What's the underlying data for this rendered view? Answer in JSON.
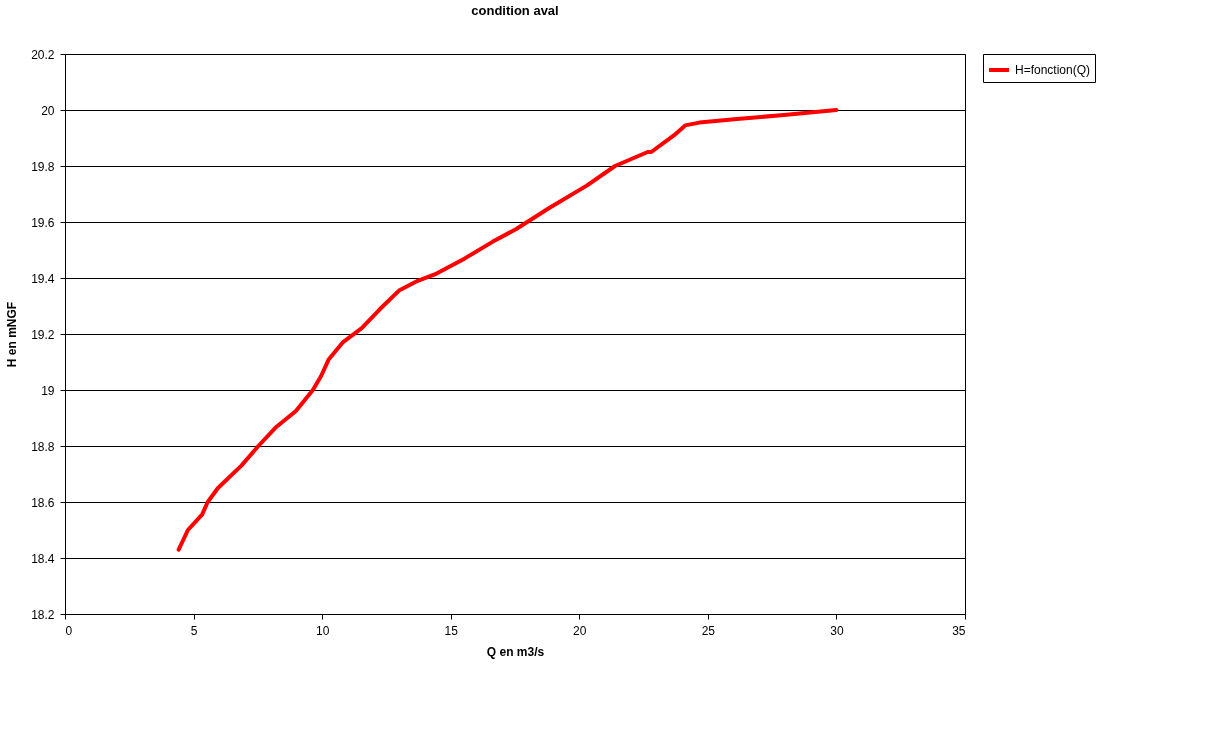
{
  "chart_data": {
    "type": "line",
    "title": "condition aval",
    "xlabel": "Q en m3/s",
    "ylabel": "H en mNGF",
    "x": [
      4.42,
      4.78,
      5.33,
      5.55,
      5.95,
      6.86,
      7.52,
      8.18,
      8.98,
      9.64,
      9.96,
      10.26,
      10.8,
      11.53,
      12.26,
      12.99,
      13.72,
      14.45,
      15.55,
      16.64,
      17.55,
      18.83,
      20.29,
      21.39,
      22.66,
      22.8,
      23.69,
      24.12,
      24.67,
      26.13,
      27.96,
      30.0
    ],
    "series": [
      {
        "name": "H=fonction(Q)",
        "color": "#ff0000",
        "values": [
          18.43,
          18.5,
          18.555,
          18.6,
          18.65,
          18.73,
          18.8,
          18.865,
          18.925,
          19.0,
          19.05,
          19.11,
          19.17,
          19.22,
          19.29,
          19.355,
          19.39,
          19.416,
          19.47,
          19.53,
          19.575,
          19.65,
          19.73,
          19.8,
          19.85,
          19.85,
          19.91,
          19.945,
          19.955,
          19.968,
          19.982,
          20.0
        ]
      }
    ],
    "xlim": [
      0,
      35
    ],
    "xticks": [
      0,
      5,
      10,
      15,
      20,
      25,
      30,
      35
    ],
    "ylim": [
      18.2,
      20.2
    ],
    "yticks": [
      18.2,
      18.4,
      18.6,
      18.8,
      19,
      19.2,
      19.4,
      19.6,
      19.8,
      20,
      20.2
    ],
    "grid": "y",
    "legend": "right",
    "marker": "none",
    "line_style": "solid"
  }
}
